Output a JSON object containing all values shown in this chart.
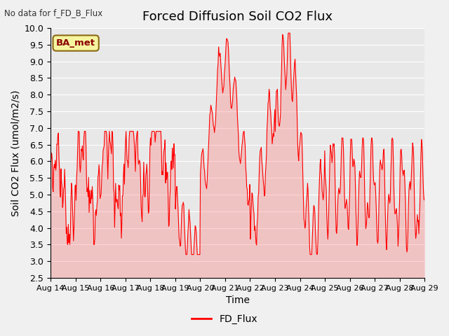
{
  "title": "Forced Diffusion Soil CO2 Flux",
  "no_data_text": "No data for f_FD_B_Flux",
  "ba_met_label": "BA_met",
  "xlabel": "Time",
  "ylabel": "Soil CO2 Flux (umol/m2/s)",
  "legend_label": "FD_Flux",
  "ylim": [
    2.5,
    10.0
  ],
  "yticks": [
    2.5,
    3.0,
    3.5,
    4.0,
    4.5,
    5.0,
    5.5,
    6.0,
    6.5,
    7.0,
    7.5,
    8.0,
    8.5,
    9.0,
    9.5,
    10.0
  ],
  "line_color": "#ff0000",
  "fill_color": "#ff8080",
  "fill_alpha": 0.35,
  "bg_color": "#e8e8e8",
  "fig_bg_color": "#f0f0f0",
  "title_fontsize": 13,
  "axis_label_fontsize": 10,
  "tick_fontsize": 9,
  "x_tick_labels": [
    "Aug 14",
    "Aug 15",
    "Aug 16",
    "Aug 17",
    "Aug 18",
    "Aug 19",
    "Aug 20",
    "Aug 21",
    "Aug 22",
    "Aug 23",
    "Aug 24",
    "Aug 25",
    "Aug 26",
    "Aug 27",
    "Aug 28",
    "Aug 29"
  ],
  "seed": 42
}
